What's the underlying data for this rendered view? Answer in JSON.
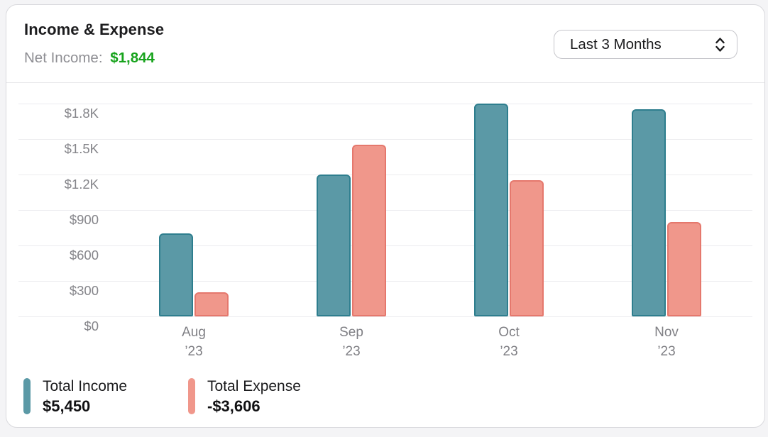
{
  "header": {
    "title": "Income & Expense",
    "net_income_label": "Net Income:",
    "net_income_value": "$1,844",
    "net_income_color": "#17A31C",
    "period_selector": {
      "value": "Last 3 Months"
    }
  },
  "legend": {
    "items": [
      {
        "name": "Total Income",
        "value": "$5,450",
        "color": "#5B99A6"
      },
      {
        "name": "Total Expense",
        "value": "-$3,606",
        "color": "#F0978B"
      }
    ]
  },
  "chart_data": {
    "type": "bar",
    "title": "Income & Expense",
    "xlabel": "",
    "ylabel": "",
    "ylim": [
      0,
      1950
    ],
    "grid": true,
    "legend_position": "bottom",
    "categories": [
      {
        "line1": "Aug",
        "line2": "’23"
      },
      {
        "line1": "Sep",
        "line2": "’23"
      },
      {
        "line1": "Oct",
        "line2": "’23"
      },
      {
        "line1": "Nov",
        "line2": "’23"
      }
    ],
    "y_ticks": [
      {
        "label": "$0",
        "value": 0
      },
      {
        "label": "$300",
        "value": 300
      },
      {
        "label": "$600",
        "value": 600
      },
      {
        "label": "$900",
        "value": 900
      },
      {
        "label": "$1.2K",
        "value": 1200
      },
      {
        "label": "$1.5K",
        "value": 1500
      },
      {
        "label": "$1.8K",
        "value": 1800
      }
    ],
    "series": [
      {
        "name": "Total Income",
        "total": "$5,450",
        "fill": "#5B99A6",
        "stroke": "#2E7E8E",
        "values": [
          700,
          1200,
          1800,
          1750
        ]
      },
      {
        "name": "Total Expense",
        "total": "-$3,606",
        "fill": "#F0978B",
        "stroke": "#E5786D",
        "values": [
          206,
          1450,
          1150,
          800
        ]
      }
    ]
  }
}
